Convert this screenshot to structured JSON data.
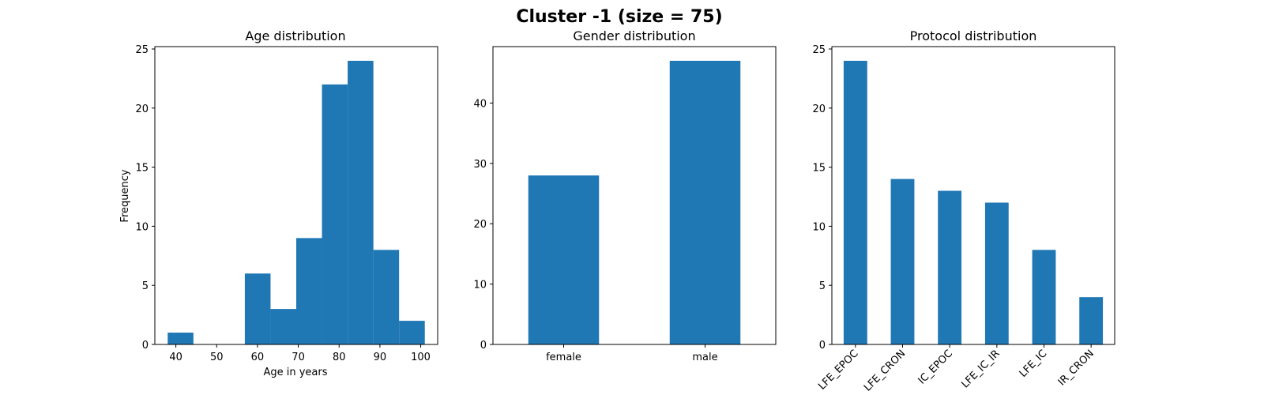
{
  "figure": {
    "title": "Cluster -1 (size = 75)",
    "bar_color": "#1f77b4"
  },
  "chart_data": [
    {
      "type": "bar",
      "title": "Age distribution",
      "xlabel": "Age in years",
      "ylabel": "Frequency",
      "bin_edges": [
        38.0,
        44.3,
        50.6,
        56.9,
        63.2,
        69.5,
        75.8,
        82.1,
        88.4,
        94.7,
        101.0
      ],
      "values": [
        1,
        0,
        0,
        6,
        3,
        9,
        22,
        24,
        8,
        2
      ],
      "xlim": [
        34.85,
        104.15
      ],
      "ylim": [
        0,
        25.2
      ],
      "xticks": [
        40,
        50,
        60,
        70,
        80,
        90,
        100
      ],
      "yticks": [
        0,
        5,
        10,
        15,
        20,
        25
      ]
    },
    {
      "type": "bar",
      "title": "Gender distribution",
      "xlabel": "",
      "ylabel": "",
      "categories": [
        "female",
        "male"
      ],
      "values": [
        28,
        47
      ],
      "ylim": [
        0,
        49.35
      ],
      "yticks": [
        0,
        10,
        20,
        30,
        40
      ]
    },
    {
      "type": "bar",
      "title": "Protocol distribution",
      "xlabel": "",
      "ylabel": "",
      "categories": [
        "LFE_EPOC",
        "LFE_CRON",
        "IC_EPOC",
        "LFE_IC_IR",
        "LFE_IC",
        "IR_CRON"
      ],
      "values": [
        24,
        14,
        13,
        12,
        8,
        4
      ],
      "ylim": [
        0,
        25.2
      ],
      "yticks": [
        0,
        5,
        10,
        15,
        20,
        25
      ]
    }
  ]
}
